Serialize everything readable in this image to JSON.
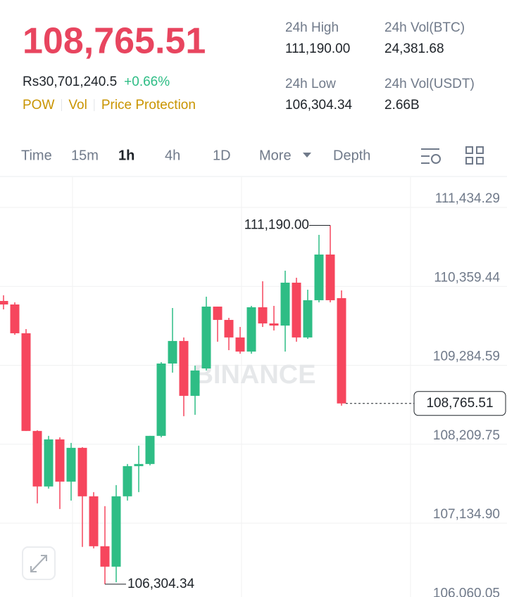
{
  "header": {
    "price": "108,765.51",
    "fiat": "Rs30,701,240.5",
    "change": "+0.66%",
    "tags": [
      "POW",
      "Vol",
      "Price Protection"
    ],
    "stats": [
      {
        "label": "24h High",
        "value": "111,190.00"
      },
      {
        "label": "24h Vol(BTC)",
        "value": "24,381.68"
      },
      {
        "label": "24h Low",
        "value": "106,304.34"
      },
      {
        "label": "24h Vol(USDT)",
        "value": "2.66B"
      }
    ]
  },
  "tabs": {
    "items": [
      "Time",
      "15m",
      "1h",
      "4h",
      "1D",
      "More",
      "Depth"
    ],
    "active": 2
  },
  "chart_data": {
    "type": "candlestick",
    "watermark": "BINANCE",
    "up_color": "#2ebd85",
    "down_color": "#f6465d",
    "ylim": [
      106130,
      111846
    ],
    "yticks": [
      {
        "value": 111434.29,
        "label": "111,434.29"
      },
      {
        "value": 110359.44,
        "label": "110,359.44"
      },
      {
        "value": 109284.59,
        "label": "109,284.59"
      },
      {
        "value": 108209.75,
        "label": "108,209.75"
      },
      {
        "value": 107134.9,
        "label": "107,134.90"
      },
      {
        "value": 106060.05,
        "label": "106,060.05"
      }
    ],
    "annotations": {
      "high": "111,190.00",
      "low": "106,304.34",
      "last": "108,765.51"
    },
    "candles": [
      {
        "open": 110161,
        "high": 110238,
        "low": 110046,
        "close": 110113
      },
      {
        "open": 110113,
        "high": 110142,
        "low": 109700,
        "close": 109721
      },
      {
        "open": 109721,
        "high": 109778,
        "low": 108391,
        "close": 108391
      },
      {
        "open": 108391,
        "high": 108400,
        "low": 107405,
        "close": 107635
      },
      {
        "open": 107635,
        "high": 108324,
        "low": 107606,
        "close": 108276
      },
      {
        "open": 108276,
        "high": 108304,
        "low": 107328,
        "close": 107701
      },
      {
        "open": 107701,
        "high": 108228,
        "low": 107443,
        "close": 108161
      },
      {
        "open": 108161,
        "high": 108170,
        "low": 106812,
        "close": 107501
      },
      {
        "open": 107501,
        "high": 107558,
        "low": 106792,
        "close": 106821
      },
      {
        "open": 106821,
        "high": 107367,
        "low": 106304.34,
        "close": 106543
      },
      {
        "open": 106543,
        "high": 107654,
        "low": 106330,
        "close": 107501
      },
      {
        "open": 107501,
        "high": 107941,
        "low": 107443,
        "close": 107912
      },
      {
        "open": 107912,
        "high": 108190,
        "low": 107558,
        "close": 107941
      },
      {
        "open": 107941,
        "high": 108324,
        "low": 107922,
        "close": 108324
      },
      {
        "open": 108324,
        "high": 109328,
        "low": 108304,
        "close": 109309
      },
      {
        "open": 109309,
        "high": 110065,
        "low": 109185,
        "close": 109616
      },
      {
        "open": 109616,
        "high": 109664,
        "low": 108592,
        "close": 108869
      },
      {
        "open": 108869,
        "high": 109281,
        "low": 108611,
        "close": 109214
      },
      {
        "open": 109242,
        "high": 110219,
        "low": 109214,
        "close": 110084
      },
      {
        "open": 110084,
        "high": 110084,
        "low": 109606,
        "close": 109903
      },
      {
        "open": 109903,
        "high": 109931,
        "low": 109491,
        "close": 109664
      },
      {
        "open": 109664,
        "high": 109807,
        "low": 109443,
        "close": 109472
      },
      {
        "open": 109472,
        "high": 110094,
        "low": 109443,
        "close": 110075
      },
      {
        "open": 110075,
        "high": 110429,
        "low": 109807,
        "close": 109855
      },
      {
        "open": 109855,
        "high": 110094,
        "low": 109759,
        "close": 109826
      },
      {
        "open": 109826,
        "high": 110573,
        "low": 109472,
        "close": 110410
      },
      {
        "open": 110410,
        "high": 110477,
        "low": 109606,
        "close": 109664
      },
      {
        "open": 109664,
        "high": 110314,
        "low": 109644,
        "close": 110171
      },
      {
        "open": 110171,
        "high": 111061,
        "low": 110142,
        "close": 110793
      },
      {
        "open": 110793,
        "high": 111190,
        "low": 110142,
        "close": 110171
      },
      {
        "open": 110199,
        "high": 110305,
        "low": 108735,
        "close": 108765.51
      }
    ]
  }
}
